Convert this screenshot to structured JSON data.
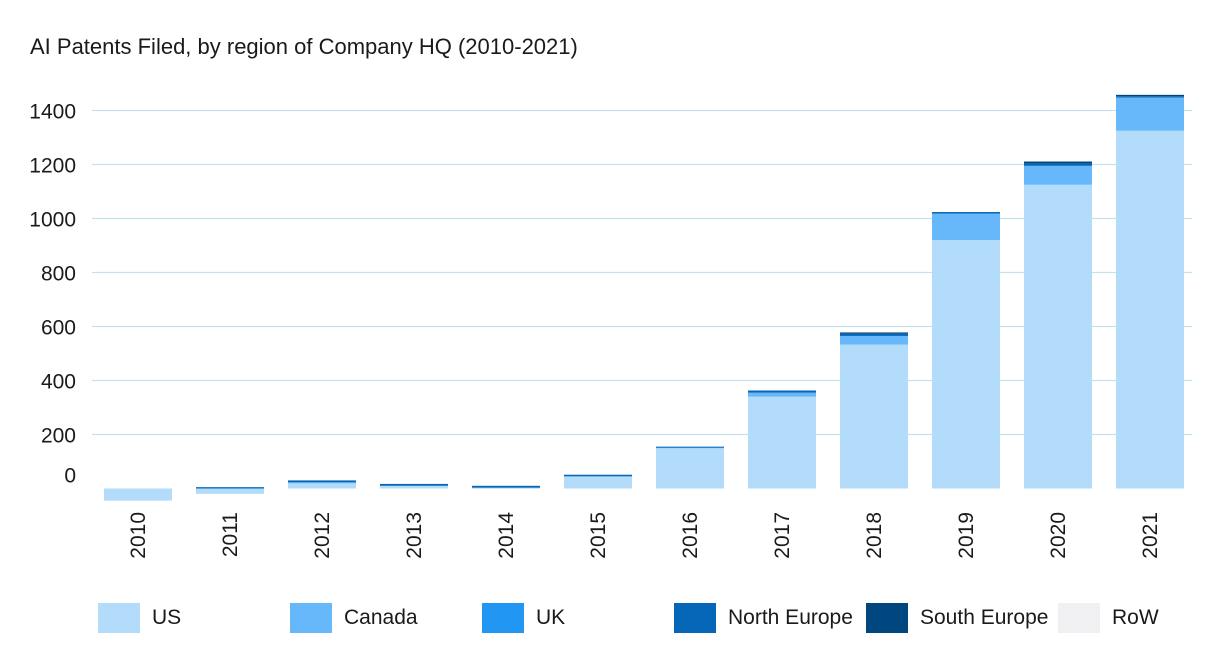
{
  "chart_data": {
    "type": "bar",
    "stacked": true,
    "title": "AI Patents Filed, by region of Company HQ (2010-2021)",
    "xlabel": "",
    "ylabel": "",
    "categories": [
      "2010",
      "2011",
      "2012",
      "2013",
      "2014",
      "2015",
      "2016",
      "2017",
      "2018",
      "2019",
      "2020",
      "2021"
    ],
    "y_ticks": [
      "0",
      "200",
      "400",
      "600",
      "800",
      "1000",
      "1200",
      "1400"
    ],
    "ylim": [
      -50,
      1500
    ],
    "grid": true,
    "legend_position": "bottom",
    "series": [
      {
        "name": "US",
        "color": "#b3dcfb",
        "values": [
          -45,
          -20,
          20,
          10,
          3,
          45,
          150,
          340,
          533,
          920,
          1125,
          1325
        ]
      },
      {
        "name": "Canada",
        "color": "#66b8fa",
        "values": [
          0,
          0,
          3,
          0,
          0,
          0,
          3,
          15,
          32,
          98,
          70,
          123
        ]
      },
      {
        "name": "UK",
        "color": "#2196f3",
        "values": [
          0,
          0,
          0,
          0,
          0,
          0,
          0,
          0,
          0,
          0,
          0,
          0
        ]
      },
      {
        "name": "North Europe",
        "color": "#0667b8",
        "values": [
          0,
          5,
          7,
          7,
          7,
          6,
          2,
          8,
          8,
          6,
          8,
          5
        ]
      },
      {
        "name": "South Europe",
        "color": "#00467f",
        "values": [
          0,
          0,
          0,
          0,
          0,
          0,
          0,
          0,
          5,
          0,
          8,
          5
        ]
      },
      {
        "name": "RoW",
        "color": "#f0f0f2",
        "values": [
          0,
          0,
          0,
          0,
          0,
          0,
          0,
          0,
          0,
          0,
          0,
          0
        ]
      }
    ]
  }
}
